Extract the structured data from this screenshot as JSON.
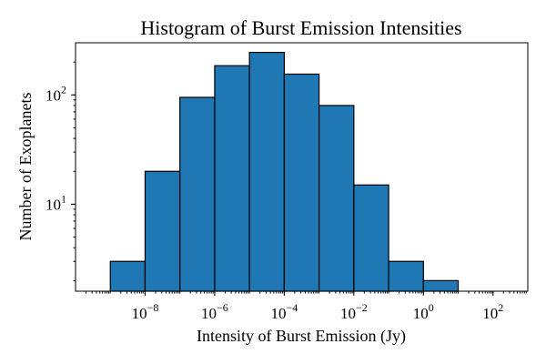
{
  "chart_data": {
    "type": "bar",
    "title": "Histogram of Burst Emission Intensities",
    "xlabel": "Intensity of Burst Emission (Jy)",
    "ylabel": "Number of Exoplanets",
    "x_scale": "log",
    "y_scale": "log",
    "bin_edges": [
      1e-09,
      1e-08,
      1e-07,
      1e-06,
      1e-05,
      0.0001,
      0.001,
      0.01,
      0.1,
      1.0,
      10.0
    ],
    "values": [
      3,
      20,
      95,
      185,
      245,
      155,
      80,
      15,
      3,
      2
    ],
    "xlim": [
      1e-10,
      1000.0
    ],
    "ylim": [
      1.6,
      300
    ],
    "bar_color": "#1f77b4",
    "edge_color": "#000000",
    "x_ticks": [
      {
        "value": 1e-08,
        "base": "10",
        "exp": "−8"
      },
      {
        "value": 1e-06,
        "base": "10",
        "exp": "−6"
      },
      {
        "value": 0.0001,
        "base": "10",
        "exp": "−4"
      },
      {
        "value": 0.01,
        "base": "10",
        "exp": "−2"
      },
      {
        "value": 1.0,
        "base": "10",
        "exp": "0"
      },
      {
        "value": 100.0,
        "base": "10",
        "exp": "2"
      }
    ],
    "y_ticks": [
      {
        "value": 10,
        "base": "10",
        "exp": "1"
      },
      {
        "value": 100,
        "base": "10",
        "exp": "2"
      }
    ]
  }
}
